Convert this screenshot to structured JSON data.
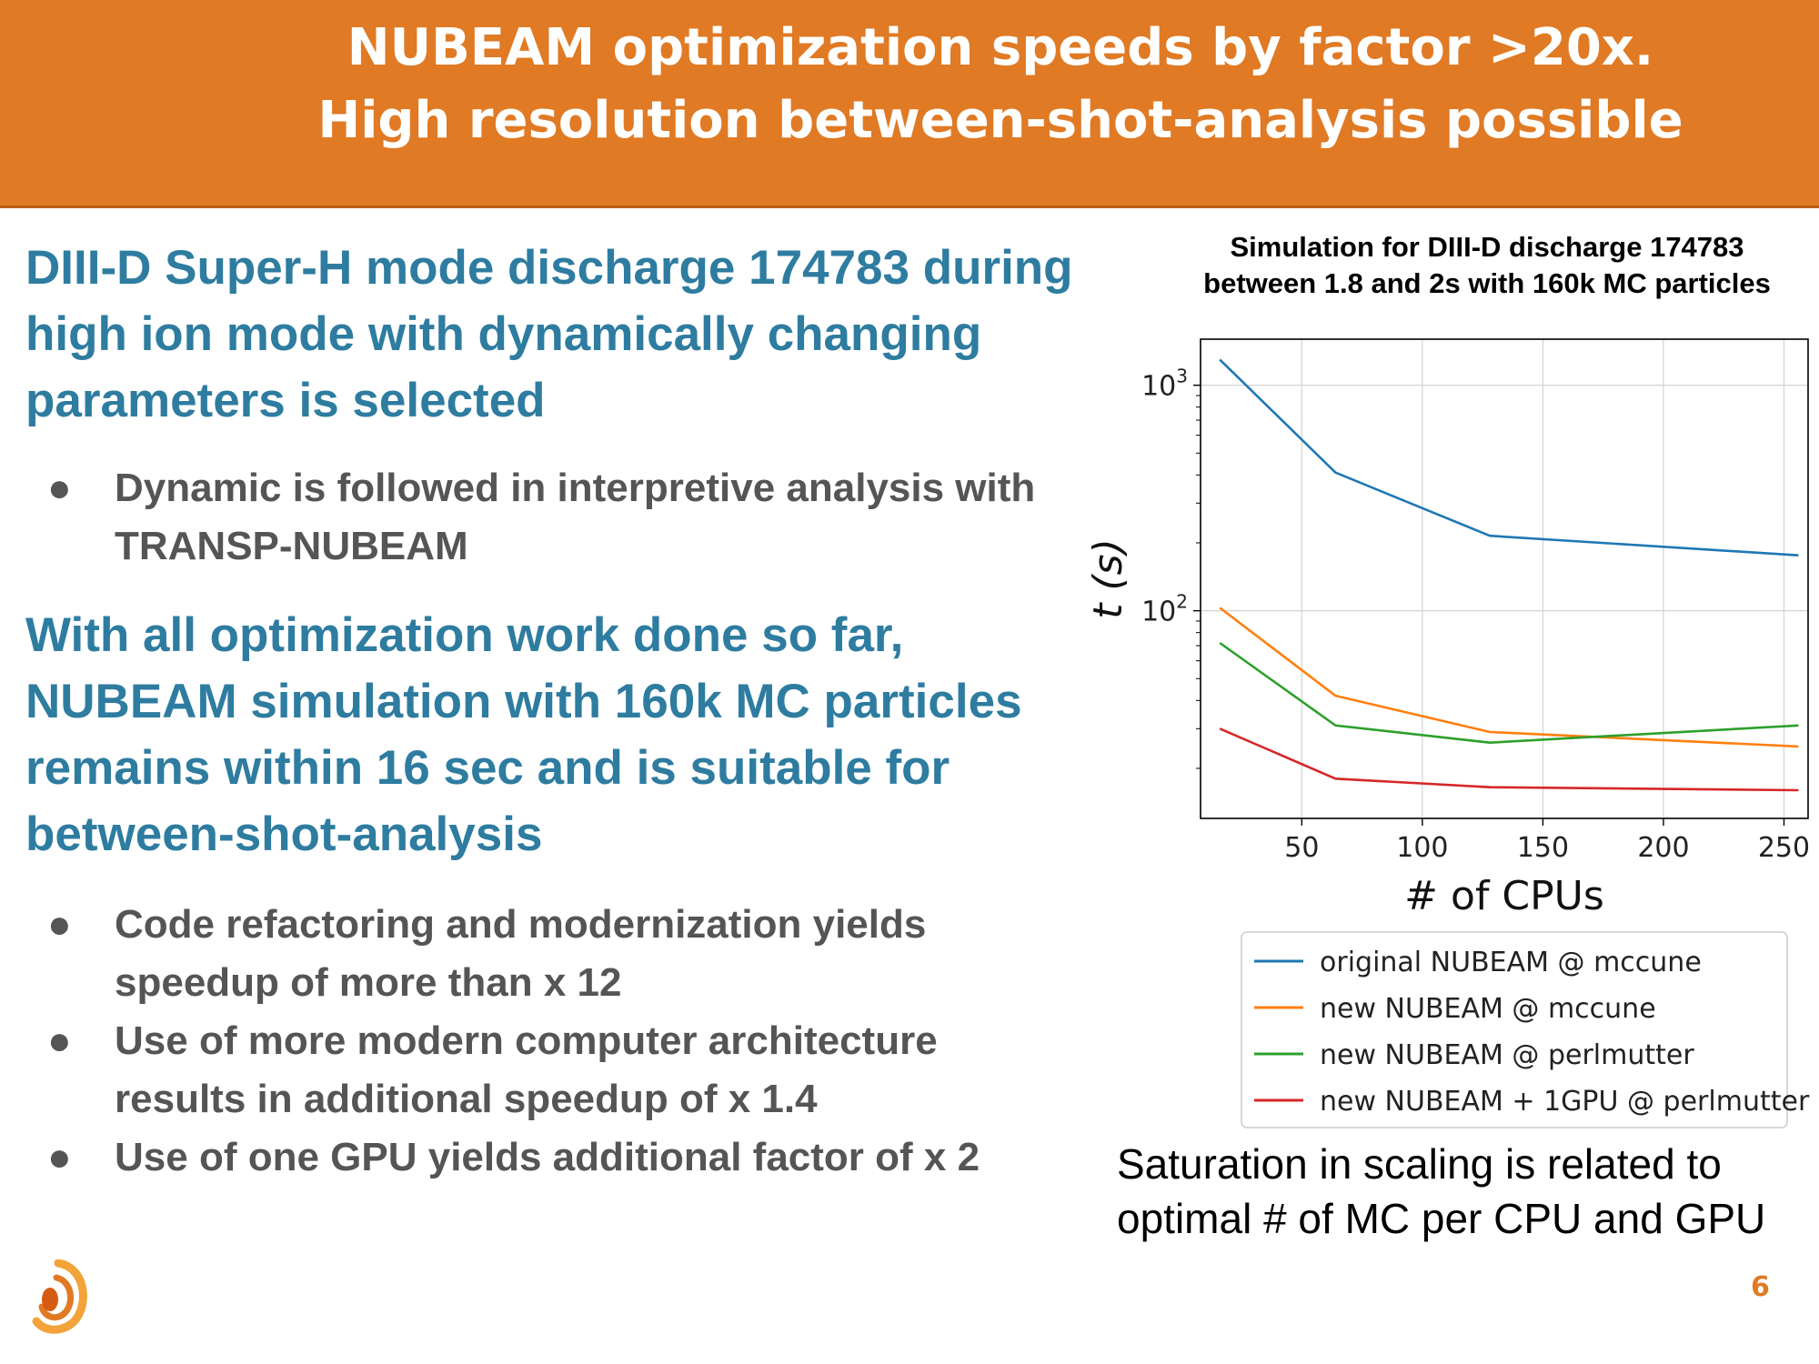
{
  "header": {
    "title_line1": "NUBEAM optimization speeds by factor >20x.",
    "title_line2": "High resolution between-shot-analysis possible"
  },
  "intro": {
    "line1": "DIII-D Super-H mode discharge 174783 during",
    "line2": "high ion mode with dynamically changing",
    "line3": "parameters is selected"
  },
  "bullets_top": [
    {
      "line1": "Dynamic is followed in interpretive analysis with",
      "line2": "TRANSP-NUBEAM"
    }
  ],
  "summary": {
    "line1": "With all optimization work done so far,",
    "line2": "NUBEAM simulation with 160k MC particles",
    "line3": "remains within 16 sec and is suitable for",
    "line4": "between-shot-analysis"
  },
  "bullets_bottom": [
    {
      "line1": "Code refactoring and modernization yields",
      "line2": "speedup of more than x 12"
    },
    {
      "line1": "Use of more modern computer architecture",
      "line2": "results in additional speedup of x 1.4"
    },
    {
      "line1": "Use of one GPU yields additional factor of x 2",
      "line2": ""
    }
  ],
  "bullet_glyph": "●",
  "chart_title": {
    "line1": "Simulation for DIII-D discharge 174783",
    "line2": "between 1.8 and 2s with 160k MC particles"
  },
  "chart_data": {
    "type": "line",
    "title": "Simulation for DIII-D discharge 174783 between 1.8 and 2s with 160k MC particles",
    "xlabel": "# of CPUs",
    "ylabel": "t (s)",
    "yscale": "log",
    "xlim": [
      8,
      260
    ],
    "ylim": [
      12,
      1600
    ],
    "xticks": [
      50,
      100,
      150,
      200,
      250
    ],
    "yticks": [
      {
        "value": 100,
        "base": "10",
        "exp": "2"
      },
      {
        "value": 1000,
        "base": "10",
        "exp": "3"
      }
    ],
    "grid": true,
    "legend_position": "below",
    "series": [
      {
        "name": "original NUBEAM @ mccune",
        "color": "#1f77b4",
        "x": [
          16,
          64,
          128,
          256
        ],
        "y": [
          1300,
          410,
          215,
          176
        ]
      },
      {
        "name": "new NUBEAM @ mccune",
        "color": "#ff7f0e",
        "x": [
          16,
          64,
          128,
          256
        ],
        "y": [
          103,
          42,
          29,
          25
        ]
      },
      {
        "name": "new NUBEAM @ perlmutter",
        "color": "#2ca02c",
        "x": [
          16,
          64,
          128,
          256
        ],
        "y": [
          72,
          31,
          26,
          31
        ]
      },
      {
        "name": "new NUBEAM + 1GPU @ perlmutter",
        "color": "#d62728",
        "x": [
          16,
          64,
          128,
          256
        ],
        "y": [
          30,
          18,
          16.5,
          16
        ]
      }
    ]
  },
  "caption": {
    "line1": "Saturation in scaling is related to",
    "line2": "optimal # of MC per CPU and GPU"
  },
  "page_number": "6",
  "colors": {
    "header_bg": "#e07a24",
    "accent_blue": "#2e7ca0",
    "body_gray": "#555555"
  }
}
